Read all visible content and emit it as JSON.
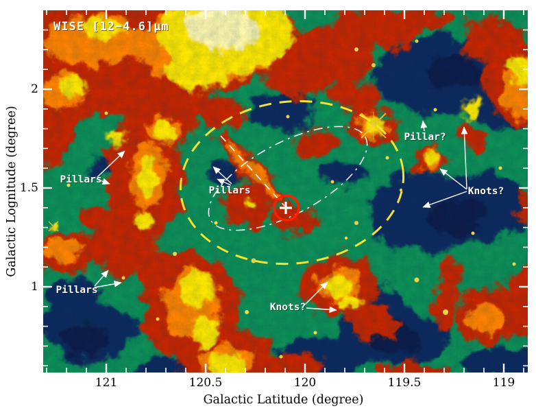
{
  "figure": {
    "title": "WISE [12−4.6]μm",
    "x_axis": {
      "label": "Galactic Latitude (degree)",
      "tick_labels": [
        "121",
        "120.5",
        "120",
        "119.5",
        "119"
      ]
    },
    "y_axis": {
      "label": "Galactic Lognitude (degree)",
      "tick_labels": [
        "2",
        "1.5",
        "1"
      ]
    },
    "annotations": {
      "pillars_left": "Pillars",
      "pillars_center": "Pillars",
      "pillars_bottom_left": "Pillars",
      "pillar_right": "Pillar?",
      "knots_right": "Knots?",
      "knots_bottom": "Knots?"
    },
    "colors": {
      "background": "#ffffff",
      "map_low": "#0a2a5e",
      "map_mid": "#0e9058",
      "map_high": "#c62700",
      "map_peak": "#ffe900",
      "dashed_ellipse": "#f5e42e",
      "overlay_lines": "#ffffff",
      "marker_circle": "#ff1e00"
    }
  },
  "chart_data": {
    "type": "heatmap",
    "title": "WISE [12−4.6]μm",
    "xlabel": "Galactic Latitude (degree)",
    "ylabel": "Galactic Lognitude (degree)",
    "x_range": [
      121.32,
      118.88
    ],
    "x_ticks": [
      121,
      120.5,
      120,
      119.5,
      119
    ],
    "x_axis_reversed": true,
    "y_range": [
      0.55,
      2.4
    ],
    "y_ticks": [
      2,
      1.5,
      1
    ],
    "colormap_order": [
      "navy (faint)",
      "green",
      "red",
      "orange",
      "yellow (bright)"
    ],
    "annotations": [
      {
        "label": "Pillars",
        "lat": 121.13,
        "lon": 1.54
      },
      {
        "label": "Pillars",
        "lat": 120.38,
        "lon": 1.48
      },
      {
        "label": "Pillars",
        "lat": 121.15,
        "lon": 0.97
      },
      {
        "label": "Pillar?",
        "lat": 119.4,
        "lon": 1.76
      },
      {
        "label": "Knots?",
        "lat": 119.1,
        "lon": 1.48
      },
      {
        "label": "Knots?",
        "lat": 120.09,
        "lon": 0.88
      }
    ],
    "markers": [
      {
        "type": "cross_with_circle",
        "lat": 120.1,
        "lon": 1.39
      },
      {
        "type": "yellow_dashed_ellipse",
        "center_lat": 120.07,
        "center_lon": 1.52,
        "semi_axis_lat_deg": 0.56,
        "semi_axis_lon_deg": 0.42
      },
      {
        "type": "white_dash_dot_ellipse",
        "center_lat": 120.12,
        "center_lon": 1.56,
        "tilted": true
      }
    ]
  }
}
